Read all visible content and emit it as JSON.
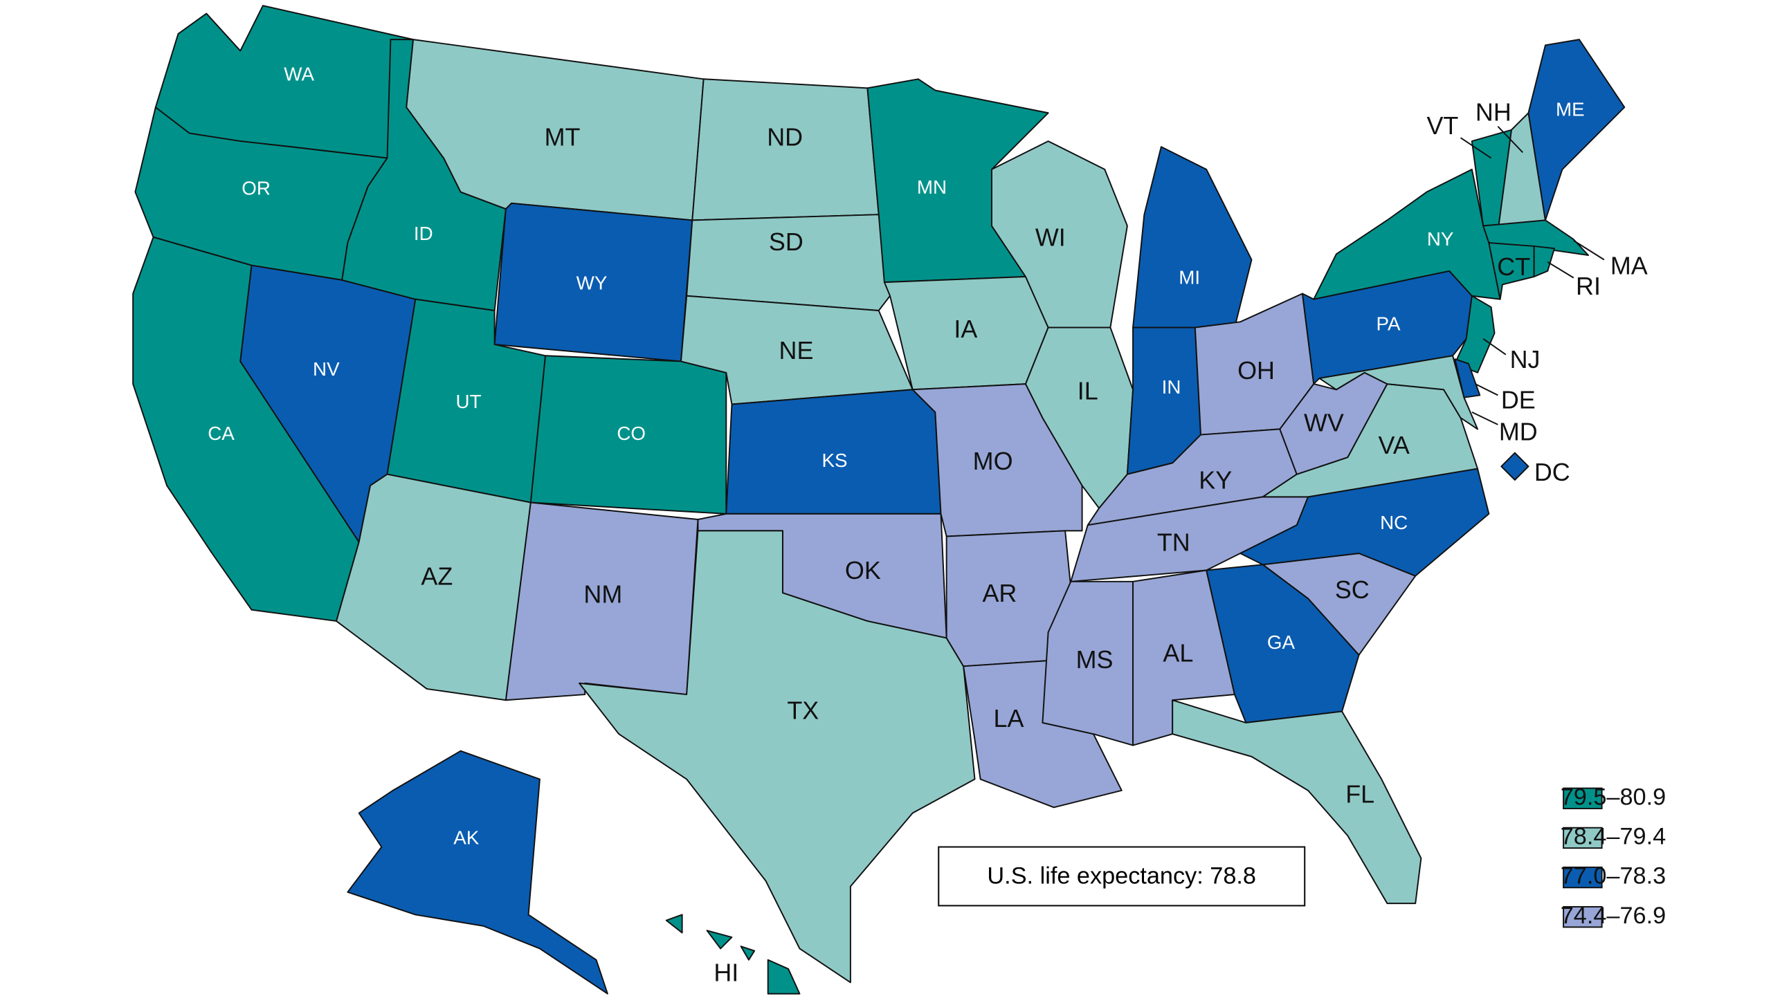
{
  "annotation": "U.S. life expectancy: 78.8",
  "legend": [
    {
      "label": "79.5–80.9",
      "color": "#00928a"
    },
    {
      "label": "78.4–79.4",
      "color": "#8fc9c6"
    },
    {
      "label": "77.0–78.3",
      "color": "#0a5cb0"
    },
    {
      "label": "74.4–76.9",
      "color": "#97a6d6"
    }
  ],
  "states": [
    {
      "label": "WA",
      "color": "#00928a"
    },
    {
      "label": "OR",
      "color": "#00928a"
    },
    {
      "label": "CA",
      "color": "#00928a"
    },
    {
      "label": "NV",
      "color": "#0a5cb0"
    },
    {
      "label": "ID",
      "color": "#00928a"
    },
    {
      "label": "MT",
      "color": "#8fc9c6"
    },
    {
      "label": "WY",
      "color": "#0a5cb0"
    },
    {
      "label": "UT",
      "color": "#00928a"
    },
    {
      "label": "CO",
      "color": "#00928a"
    },
    {
      "label": "AZ",
      "color": "#8fc9c6"
    },
    {
      "label": "NM",
      "color": "#97a6d6"
    },
    {
      "label": "ND",
      "color": "#8fc9c6"
    },
    {
      "label": "SD",
      "color": "#8fc9c6"
    },
    {
      "label": "NE",
      "color": "#8fc9c6"
    },
    {
      "label": "KS",
      "color": "#0a5cb0"
    },
    {
      "label": "OK",
      "color": "#97a6d6"
    },
    {
      "label": "TX",
      "color": "#8fc9c6"
    },
    {
      "label": "MN",
      "color": "#00928a"
    },
    {
      "label": "IA",
      "color": "#8fc9c6"
    },
    {
      "label": "MO",
      "color": "#97a6d6"
    },
    {
      "label": "AR",
      "color": "#97a6d6"
    },
    {
      "label": "LA",
      "color": "#97a6d6"
    },
    {
      "label": "WI",
      "color": "#8fc9c6"
    },
    {
      "label": "IL",
      "color": "#8fc9c6"
    },
    {
      "label": "MI",
      "color": "#0a5cb0"
    },
    {
      "label": "IN",
      "color": "#0a5cb0"
    },
    {
      "label": "OH",
      "color": "#97a6d6"
    },
    {
      "label": "KY",
      "color": "#97a6d6"
    },
    {
      "label": "TN",
      "color": "#97a6d6"
    },
    {
      "label": "MS",
      "color": "#97a6d6"
    },
    {
      "label": "AL",
      "color": "#97a6d6"
    },
    {
      "label": "GA",
      "color": "#0a5cb0"
    },
    {
      "label": "FL",
      "color": "#8fc9c6"
    },
    {
      "label": "SC",
      "color": "#97a6d6"
    },
    {
      "label": "NC",
      "color": "#0a5cb0"
    },
    {
      "label": "VA",
      "color": "#8fc9c6"
    },
    {
      "label": "WV",
      "color": "#97a6d6"
    },
    {
      "label": "PA",
      "color": "#0a5cb0"
    },
    {
      "label": "NY",
      "color": "#00928a"
    },
    {
      "label": "VT",
      "color": "#00928a"
    },
    {
      "label": "NH",
      "color": "#8fc9c6"
    },
    {
      "label": "ME",
      "color": "#0a5cb0"
    },
    {
      "label": "MA",
      "color": "#00928a"
    },
    {
      "label": "CT",
      "color": "#00928a"
    },
    {
      "label": "RI",
      "color": "#00928a"
    },
    {
      "label": "NJ",
      "color": "#00928a"
    },
    {
      "label": "DE",
      "color": "#0a5cb0"
    },
    {
      "label": "MD",
      "color": "#8fc9c6"
    },
    {
      "label": "DC",
      "color": "#0a5cb0"
    },
    {
      "label": "AK",
      "color": "#0a5cb0"
    },
    {
      "label": "HI",
      "color": "#00928a"
    }
  ]
}
